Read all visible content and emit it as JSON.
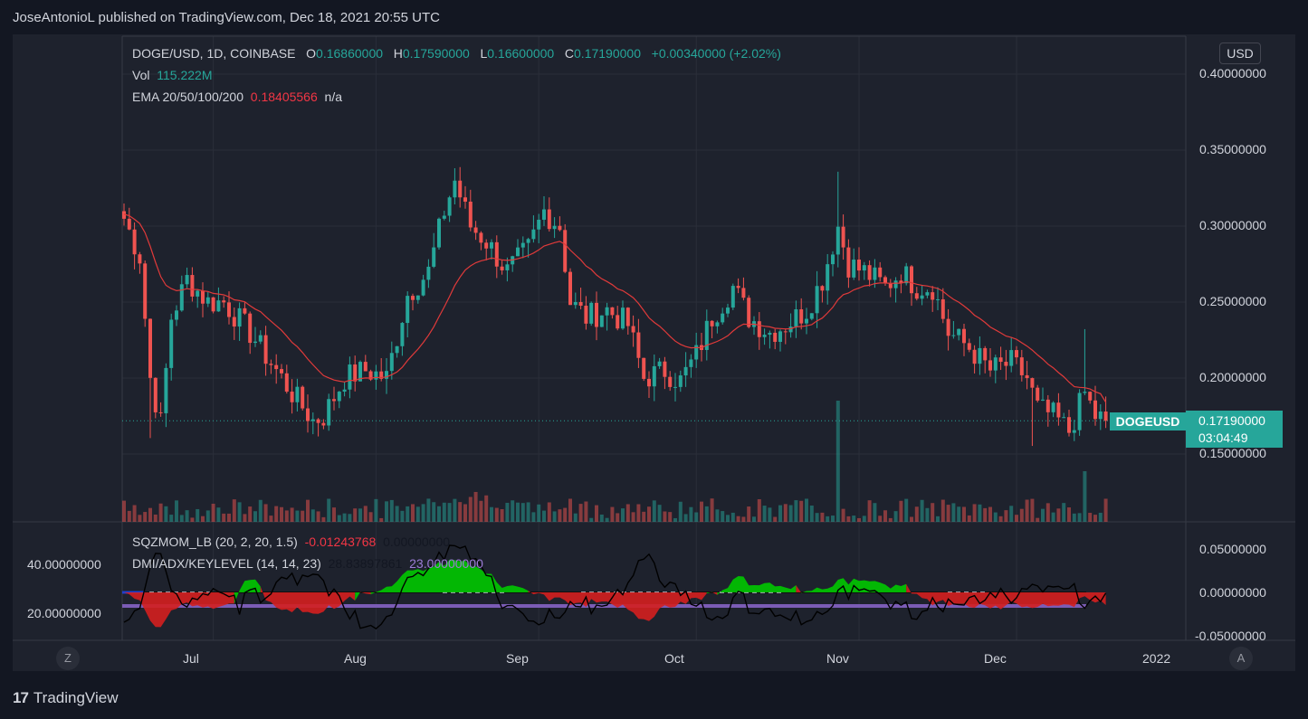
{
  "header": {
    "published": "JoseAntonioL published on TradingView.com, Dec 18, 2021 20:55 UTC"
  },
  "legend": {
    "symbol": "DOGE/USD, 1D, COINBASE",
    "o_label": "O",
    "o_value": "0.16860000",
    "h_label": "H",
    "h_value": "0.17590000",
    "l_label": "L",
    "l_value": "0.16600000",
    "c_label": "C",
    "c_value": "0.17190000",
    "change": "+0.00340000 (+2.02%)",
    "vol_label": "Vol",
    "vol_value": "115.222M",
    "ema_label": "EMA 20/50/100/200",
    "ema_value": "0.18405566",
    "ema_na": "n/a"
  },
  "indicators": {
    "sqz_label": "SQZMOM_LB (20, 2, 20, 1.5)",
    "sqz_v1": "-0.01243768",
    "sqz_v2": "0.00000000",
    "dmi_label": "DMI/ADX/KEYLEVEL (14, 14, 23)",
    "dmi_v1": "28.83897861",
    "dmi_v2": "23.00000000"
  },
  "price_axis": {
    "currency": "USD",
    "ticks": [
      "0.40000000",
      "0.35000000",
      "0.30000000",
      "0.25000000",
      "0.20000000",
      "0.15000000"
    ],
    "last_symbol": "DOGEUSD",
    "last_price": "0.17190000",
    "countdown": "03:04:49"
  },
  "indicator_axis": {
    "right_ticks": [
      "0.05000000",
      "0.00000000",
      "-0.05000000"
    ],
    "left_ticks": [
      "40.00000000",
      "20.00000000"
    ]
  },
  "time_axis": {
    "labels": [
      "Jul",
      "Aug",
      "Sep",
      "Oct",
      "Nov",
      "Dec",
      "2022"
    ]
  },
  "controls": {
    "left_btn": "Z",
    "right_btn": "A"
  },
  "footer": {
    "brand": "TradingView"
  },
  "colors": {
    "up": "#26a69a",
    "down": "#ef5350",
    "ema": "#e03a3a",
    "bg": "#1e222d",
    "sqz_pos": "#00c800",
    "sqz_neg": "#d41f1f",
    "keylevel": "#7b5cb5"
  },
  "chart_data": {
    "type": "candlestick",
    "title": "DOGE/USD, 1D, COINBASE",
    "ylim": [
      0.125,
      0.415
    ],
    "x_range": [
      "Jun 14, 2021",
      "Dec 18, 2021"
    ],
    "close_anchors": [
      [
        "Jun 14",
        0.305
      ],
      [
        "Jun 17",
        0.28
      ],
      [
        "Jun 19",
        0.2
      ],
      [
        "Jun 21",
        0.17
      ],
      [
        "Jun 23",
        0.24
      ],
      [
        "Jun 26",
        0.265
      ],
      [
        "Jun 30",
        0.25
      ],
      [
        "Jul 3",
        0.25
      ],
      [
        "Jul 8",
        0.23
      ],
      [
        "Jul 12",
        0.21
      ],
      [
        "Jul 16",
        0.19
      ],
      [
        "Jul 20",
        0.172
      ],
      [
        "Jul 22",
        0.175
      ],
      [
        "Jul 26",
        0.2
      ],
      [
        "Jul 30",
        0.205
      ],
      [
        "Aug 3",
        0.2
      ],
      [
        "Aug 7",
        0.255
      ],
      [
        "Aug 11",
        0.27
      ],
      [
        "Aug 14",
        0.31
      ],
      [
        "Aug 16",
        0.33
      ],
      [
        "Aug 19",
        0.3
      ],
      [
        "Aug 22",
        0.29
      ],
      [
        "Aug 26",
        0.27
      ],
      [
        "Aug 30",
        0.285
      ],
      [
        "Sep 2",
        0.31
      ],
      [
        "Sep 5",
        0.3
      ],
      [
        "Sep 7",
        0.25
      ],
      [
        "Sep 10",
        0.24
      ],
      [
        "Sep 14",
        0.245
      ],
      [
        "Sep 18",
        0.235
      ],
      [
        "Sep 21",
        0.2
      ],
      [
        "Sep 25",
        0.205
      ],
      [
        "Sep 28",
        0.198
      ],
      [
        "Oct 1",
        0.215
      ],
      [
        "Oct 4",
        0.24
      ],
      [
        "Oct 8",
        0.26
      ],
      [
        "Oct 11",
        0.24
      ],
      [
        "Oct 15",
        0.23
      ],
      [
        "Oct 18",
        0.235
      ],
      [
        "Oct 22",
        0.245
      ],
      [
        "Oct 25",
        0.265
      ],
      [
        "Oct 28",
        0.3
      ],
      [
        "Oct 30",
        0.275
      ],
      [
        "Nov 2",
        0.27
      ],
      [
        "Nov 6",
        0.26
      ],
      [
        "Nov 9",
        0.27
      ],
      [
        "Nov 12",
        0.26
      ],
      [
        "Nov 15",
        0.26
      ],
      [
        "Nov 18",
        0.23
      ],
      [
        "Nov 22",
        0.22
      ],
      [
        "Nov 26",
        0.205
      ],
      [
        "Nov 30",
        0.21
      ],
      [
        "Dec 3",
        0.2
      ],
      [
        "Dec 5",
        0.18
      ],
      [
        "Dec 8",
        0.175
      ],
      [
        "Dec 11",
        0.165
      ],
      [
        "Dec 14",
        0.19
      ],
      [
        "Dec 16",
        0.175
      ],
      [
        "Dec 18",
        0.1719
      ]
    ],
    "ema_last": 0.18405566,
    "last_close": 0.1719,
    "volume_spikes": [
      [
        "Oct 28",
        "high"
      ],
      [
        "Dec 14",
        "high"
      ]
    ]
  }
}
